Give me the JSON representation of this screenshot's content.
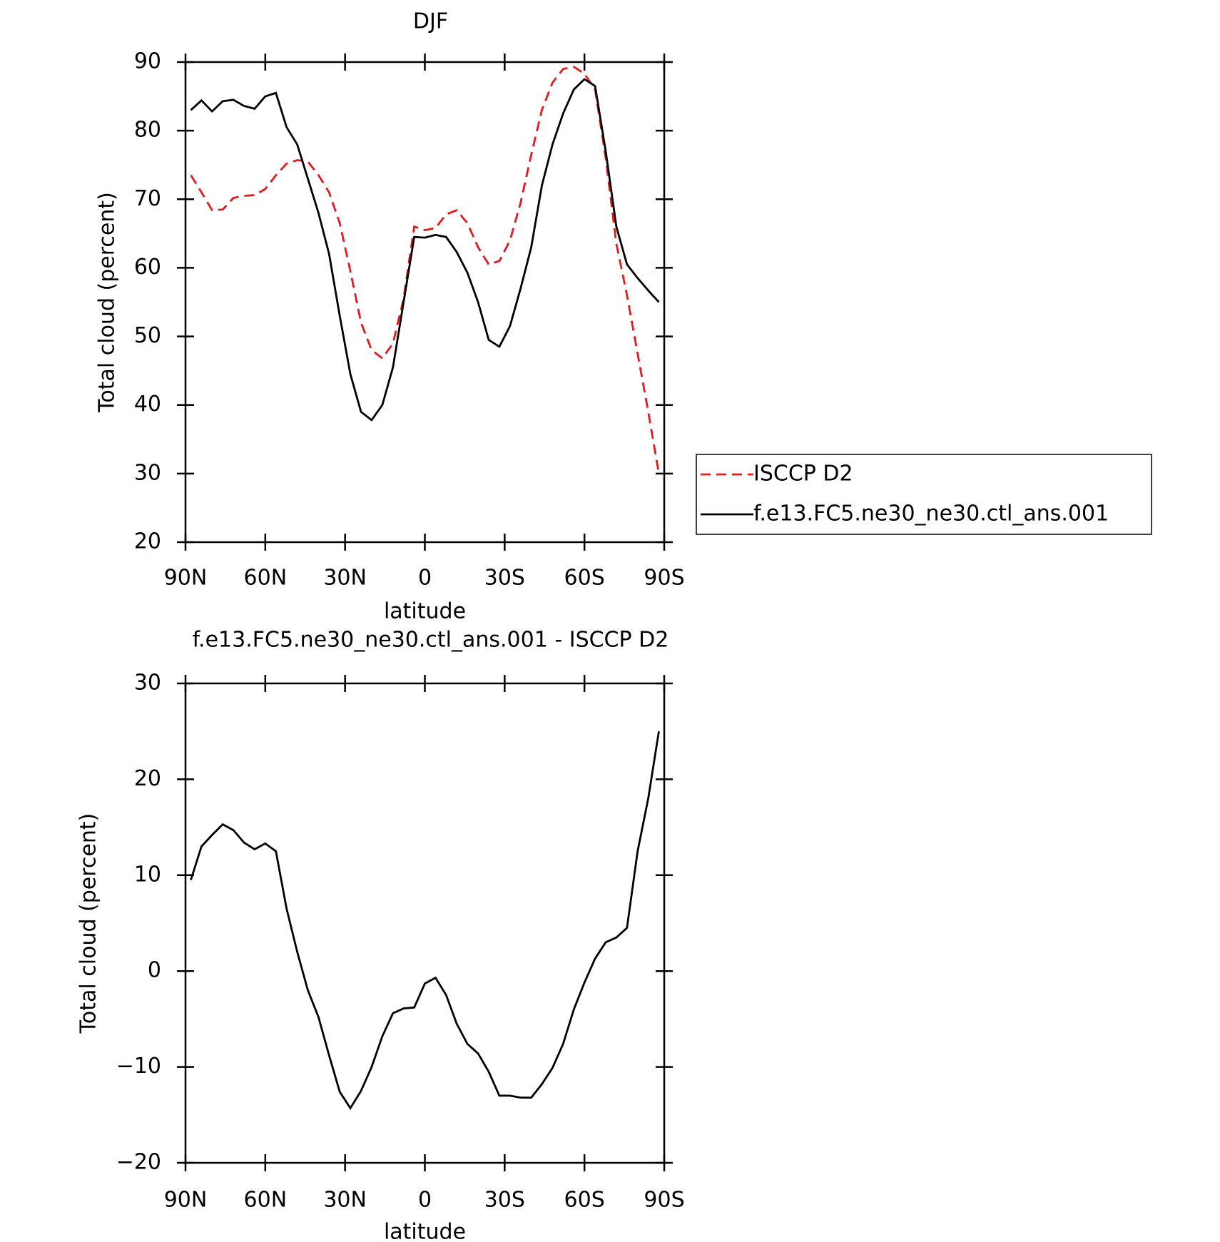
{
  "chart_data": [
    {
      "type": "line",
      "title": "DJF",
      "xlabel": "latitude",
      "ylabel": "Total cloud (percent)",
      "x": [
        88,
        84,
        80,
        76,
        72,
        68,
        64,
        60,
        56,
        52,
        48,
        44,
        40,
        36,
        32,
        28,
        24,
        20,
        16,
        12,
        8,
        4,
        0,
        -4,
        -8,
        -12,
        -16,
        -20,
        -24,
        -28,
        -32,
        -36,
        -40,
        -44,
        -48,
        -52,
        -56,
        -60,
        -64,
        -68,
        -72,
        -76,
        -80,
        -84,
        -88
      ],
      "xlim": [
        90,
        -90
      ],
      "xticks": [
        {
          "value": 90,
          "label": "90N"
        },
        {
          "value": 60,
          "label": "60N"
        },
        {
          "value": 30,
          "label": "30N"
        },
        0,
        {
          "value": -30,
          "label": "30S"
        },
        {
          "value": -60,
          "label": "60S"
        },
        {
          "value": -90,
          "label": "90S"
        }
      ],
      "ylim": [
        20,
        90
      ],
      "yticks": [
        20,
        30,
        40,
        50,
        60,
        70,
        80,
        90
      ],
      "legend": "right",
      "series": [
        {
          "name": "ISCCP D2",
          "color": "#e41a1c",
          "linestyle": "dashed",
          "values": [
            73.5,
            71,
            68.4,
            68.5,
            70.2,
            70.5,
            70.6,
            71.5,
            73.5,
            75.2,
            75.7,
            75.5,
            73.5,
            71,
            66.5,
            59.5,
            52,
            48,
            46.8,
            49,
            55.5,
            66,
            65.5,
            65.8,
            67.8,
            68.4,
            66.5,
            63,
            60.5,
            61,
            64,
            69.5,
            76.5,
            83,
            87,
            89,
            89.3,
            88.3,
            86,
            76,
            63.5,
            56,
            47.5,
            39,
            30
          ]
        },
        {
          "name": "f.e13.FC5.ne30_ne30.ctl_ans.001",
          "color": "#000000",
          "linestyle": "solid",
          "values": [
            83,
            84.4,
            82.8,
            84.3,
            84.5,
            83.6,
            83.2,
            85,
            85.5,
            80.5,
            78,
            73,
            68,
            62,
            53,
            44.5,
            39,
            37.8,
            40,
            45.5,
            55,
            64.5,
            64.4,
            64.8,
            64.5,
            62.3,
            59.3,
            55,
            49.5,
            48.5,
            51.5,
            57,
            63,
            72,
            78,
            82.5,
            86,
            87.5,
            86.5,
            77,
            66,
            60.5,
            58.5,
            56.7,
            55
          ]
        }
      ]
    },
    {
      "type": "line",
      "title": "f.e13.FC5.ne30_ne30.ctl_ans.001 - ISCCP D2",
      "xlabel": "latitude",
      "ylabel": "Total cloud (percent)",
      "x": [
        88,
        84,
        80,
        76,
        72,
        68,
        64,
        60,
        56,
        52,
        48,
        44,
        40,
        36,
        32,
        28,
        24,
        20,
        16,
        12,
        8,
        4,
        0,
        -4,
        -8,
        -12,
        -16,
        -20,
        -24,
        -28,
        -32,
        -36,
        -40,
        -44,
        -48,
        -52,
        -56,
        -60,
        -64,
        -68,
        -72,
        -76,
        -80,
        -84,
        -88
      ],
      "xlim": [
        90,
        -90
      ],
      "xticks": [
        {
          "value": 90,
          "label": "90N"
        },
        {
          "value": 60,
          "label": "60N"
        },
        {
          "value": 30,
          "label": "30N"
        },
        0,
        {
          "value": -30,
          "label": "30S"
        },
        {
          "value": -60,
          "label": "60S"
        },
        {
          "value": -90,
          "label": "90S"
        }
      ],
      "ylim": [
        -20,
        30
      ],
      "yticks": [
        {
          "value": -20,
          "label": "−20"
        },
        {
          "value": -10,
          "label": "−10"
        },
        0,
        10,
        20,
        30
      ],
      "series": [
        {
          "color": "#000000",
          "linestyle": "solid",
          "values": [
            9.5,
            13,
            14.2,
            15.3,
            14.7,
            13.4,
            12.7,
            13.3,
            12.5,
            6.5,
            2,
            -2,
            -4.8,
            -8.8,
            -12.6,
            -14.3,
            -12.5,
            -10,
            -6.8,
            -4.4,
            -3.9,
            -3.8,
            -1.3,
            -0.7,
            -2.5,
            -5.5,
            -7.6,
            -8.6,
            -10.5,
            -13,
            -13,
            -13.2,
            -13.2,
            -11.8,
            -10.1,
            -7.6,
            -4,
            -1.2,
            1.3,
            3,
            3.5,
            4.5,
            12.5,
            18,
            25
          ]
        }
      ]
    }
  ]
}
